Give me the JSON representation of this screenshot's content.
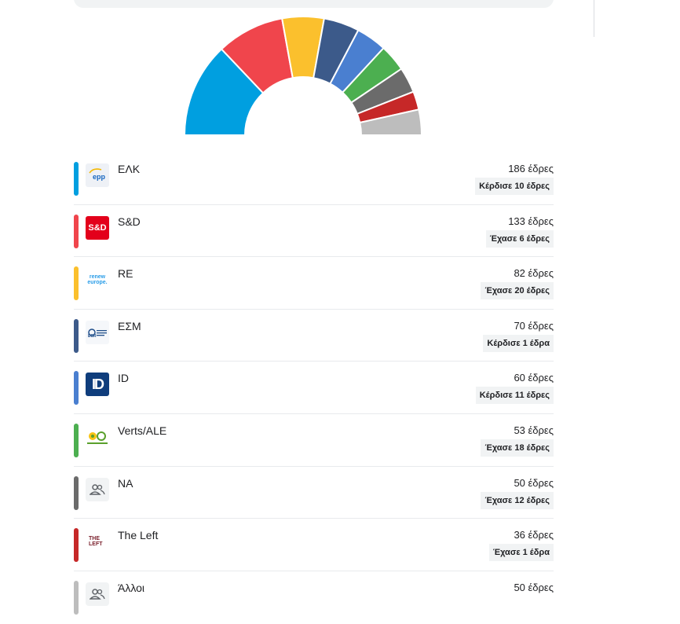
{
  "chart_data": {
    "type": "pie",
    "parties": [
      "ΕΛΚ",
      "S&D",
      "RE",
      "ΕΣΜ",
      "ID",
      "Verts/ALE",
      "NA",
      "The Left",
      "Άλλοι"
    ],
    "values": [
      186,
      133,
      82,
      70,
      60,
      53,
      50,
      36,
      50
    ],
    "colors": [
      "#009fe0",
      "#f0454c",
      "#fbc02d",
      "#3c5a8a",
      "#4a7fd0",
      "#4caf50",
      "#6b6b6b",
      "#c62828",
      "#bdbdbd"
    ]
  },
  "parties": [
    {
      "name": "ΕΛΚ",
      "seats": "186 έδρες",
      "change": "Κέρδισε 10 έδρες",
      "color": "#009fe0",
      "logo": "epp-logo",
      "logo_text": "epp"
    },
    {
      "name": "S&D",
      "seats": "133 έδρες",
      "change": "Έχασε 6 έδρες",
      "color": "#f0454c",
      "logo": "sd-logo",
      "logo_text": "S&D"
    },
    {
      "name": "RE",
      "seats": "82 έδρες",
      "change": "Έχασε 20 έδρες",
      "color": "#fbc02d",
      "logo": "renew-logo",
      "logo_text": "renew europe."
    },
    {
      "name": "ΕΣΜ",
      "seats": "70 έδρες",
      "change": "Κέρδισε 1 έδρα",
      "color": "#3c5a8a",
      "logo": "ecr-logo",
      "logo_text": "ECR"
    },
    {
      "name": "ID",
      "seats": "60 έδρες",
      "change": "Κέρδισε 11 έδρες",
      "color": "#4a7fd0",
      "logo": "id-logo",
      "logo_text": "ID"
    },
    {
      "name": "Verts/ALE",
      "seats": "53 έδρες",
      "change": "Έχασε 18 έδρες",
      "color": "#4caf50",
      "logo": "greens-logo",
      "logo_text": ""
    },
    {
      "name": "NA",
      "seats": "50 έδρες",
      "change": "Έχασε 12 έδρες",
      "color": "#6b6b6b",
      "logo": "people-icon",
      "logo_text": ""
    },
    {
      "name": "The Left",
      "seats": "36 έδρες",
      "change": "Έχασε 1 έδρα",
      "color": "#c62828",
      "logo": "left-logo",
      "logo_text": "THE LEFT"
    },
    {
      "name": "Άλλοι",
      "seats": "50 έδρες",
      "change": "",
      "color": "#bdbdbd",
      "logo": "people-icon",
      "logo_text": ""
    }
  ]
}
